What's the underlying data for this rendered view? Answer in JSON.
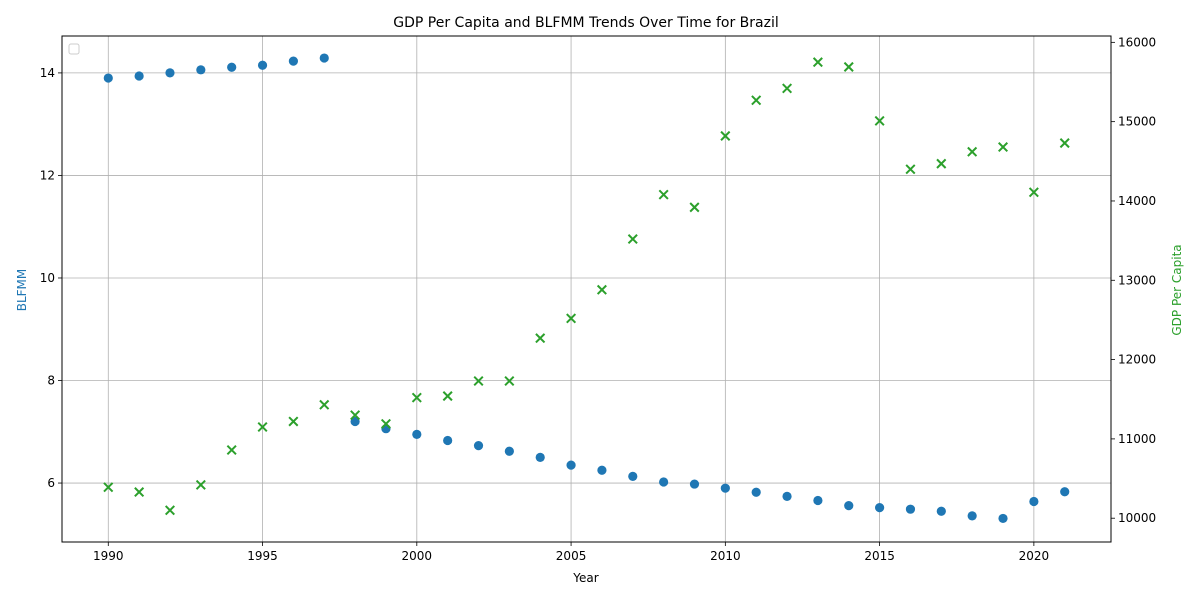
{
  "chart_data": {
    "type": "scatter",
    "title": "GDP Per Capita and BLFMM Trends Over Time for Brazil",
    "xlabel": "Year",
    "ylabel_left": "BLFMM",
    "ylabel_right": "GDP Per Capita",
    "xlim": [
      1988.5,
      2022.5
    ],
    "ylim_left": [
      4.85,
      14.72
    ],
    "ylim_right": [
      9700,
      16080
    ],
    "x_ticks": [
      1990,
      1995,
      2000,
      2005,
      2010,
      2015,
      2020
    ],
    "y_left_ticks": [
      6,
      8,
      10,
      12,
      14
    ],
    "y_right_ticks": [
      10000,
      11000,
      12000,
      13000,
      14000,
      15000,
      16000
    ],
    "grid": true,
    "legend": "upper-left (empty)",
    "x": [
      1990,
      1991,
      1992,
      1993,
      1994,
      1995,
      1996,
      1997,
      1998,
      1999,
      2000,
      2001,
      2002,
      2003,
      2004,
      2005,
      2006,
      2007,
      2008,
      2009,
      2010,
      2011,
      2012,
      2013,
      2014,
      2015,
      2016,
      2017,
      2018,
      2019,
      2020,
      2021
    ],
    "series": [
      {
        "axis": "left",
        "marker": "circle",
        "color": "#1f77b4",
        "values": [
          13.9,
          13.94,
          14.0,
          14.06,
          14.11,
          14.15,
          14.23,
          14.29,
          7.2,
          7.06,
          6.95,
          6.83,
          6.73,
          6.62,
          6.5,
          6.35,
          6.25,
          6.13,
          6.02,
          5.98,
          5.9,
          5.82,
          5.74,
          5.66,
          5.56,
          5.52,
          5.49,
          5.45,
          5.36,
          5.31,
          5.64,
          5.83
        ]
      },
      {
        "axis": "right",
        "marker": "x",
        "color": "#2ca02c",
        "values": [
          10390,
          10330,
          10100,
          10420,
          10860,
          11150,
          11220,
          11430,
          11300,
          11190,
          11520,
          11540,
          11730,
          11730,
          12270,
          12520,
          12880,
          13520,
          14080,
          13920,
          14820,
          15270,
          15420,
          15750,
          15690,
          15010,
          14400,
          14470,
          14620,
          14680,
          14110,
          14730
        ]
      }
    ]
  }
}
